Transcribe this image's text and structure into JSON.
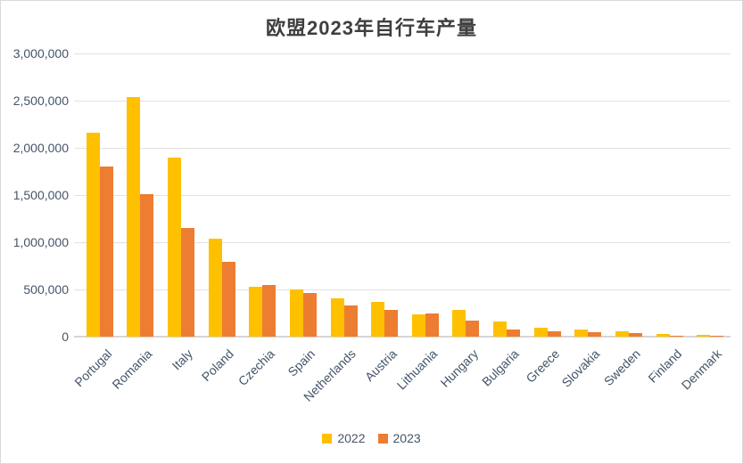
{
  "chart_data": {
    "type": "bar",
    "title": "欧盟2023年自行车产量",
    "categories": [
      "Portugal",
      "Romania",
      "Italy",
      "Poland",
      "Czechia",
      "Spain",
      "Netherlands",
      "Austria",
      "Lithuania",
      "Hungary",
      "Bulgaria",
      "Greece",
      "Slovakia",
      "Sweden",
      "Finland",
      "Denmark"
    ],
    "series": [
      {
        "name": "2022",
        "color": "#FFC000",
        "values": [
          2160000,
          2540000,
          1900000,
          1040000,
          530000,
          500000,
          405000,
          365000,
          235000,
          280000,
          165000,
          90000,
          75000,
          60000,
          30000,
          18000
        ]
      },
      {
        "name": "2023",
        "color": "#ED7D31",
        "values": [
          1800000,
          1510000,
          1150000,
          790000,
          550000,
          460000,
          330000,
          285000,
          250000,
          170000,
          75000,
          60000,
          50000,
          35000,
          12000,
          3000
        ]
      }
    ],
    "xlabel": "",
    "ylabel": "",
    "ylim": [
      0,
      3000000
    ],
    "yticks": [
      0,
      500000,
      1000000,
      1500000,
      2000000,
      2500000,
      3000000
    ],
    "ytick_labels": [
      "0",
      "500,000",
      "1,000,000",
      "1,500,000",
      "2,000,000",
      "2,500,000",
      "3,000,000"
    ],
    "grid": true,
    "legend_position": "bottom",
    "x_label_rotation_deg": 45
  },
  "colors": {
    "background": "#FFFFFF",
    "frame_border": "#D9D9D9",
    "gridline": "#E2E2E2",
    "axis_text": "#44546A",
    "title_text": "#3F3F3F"
  }
}
